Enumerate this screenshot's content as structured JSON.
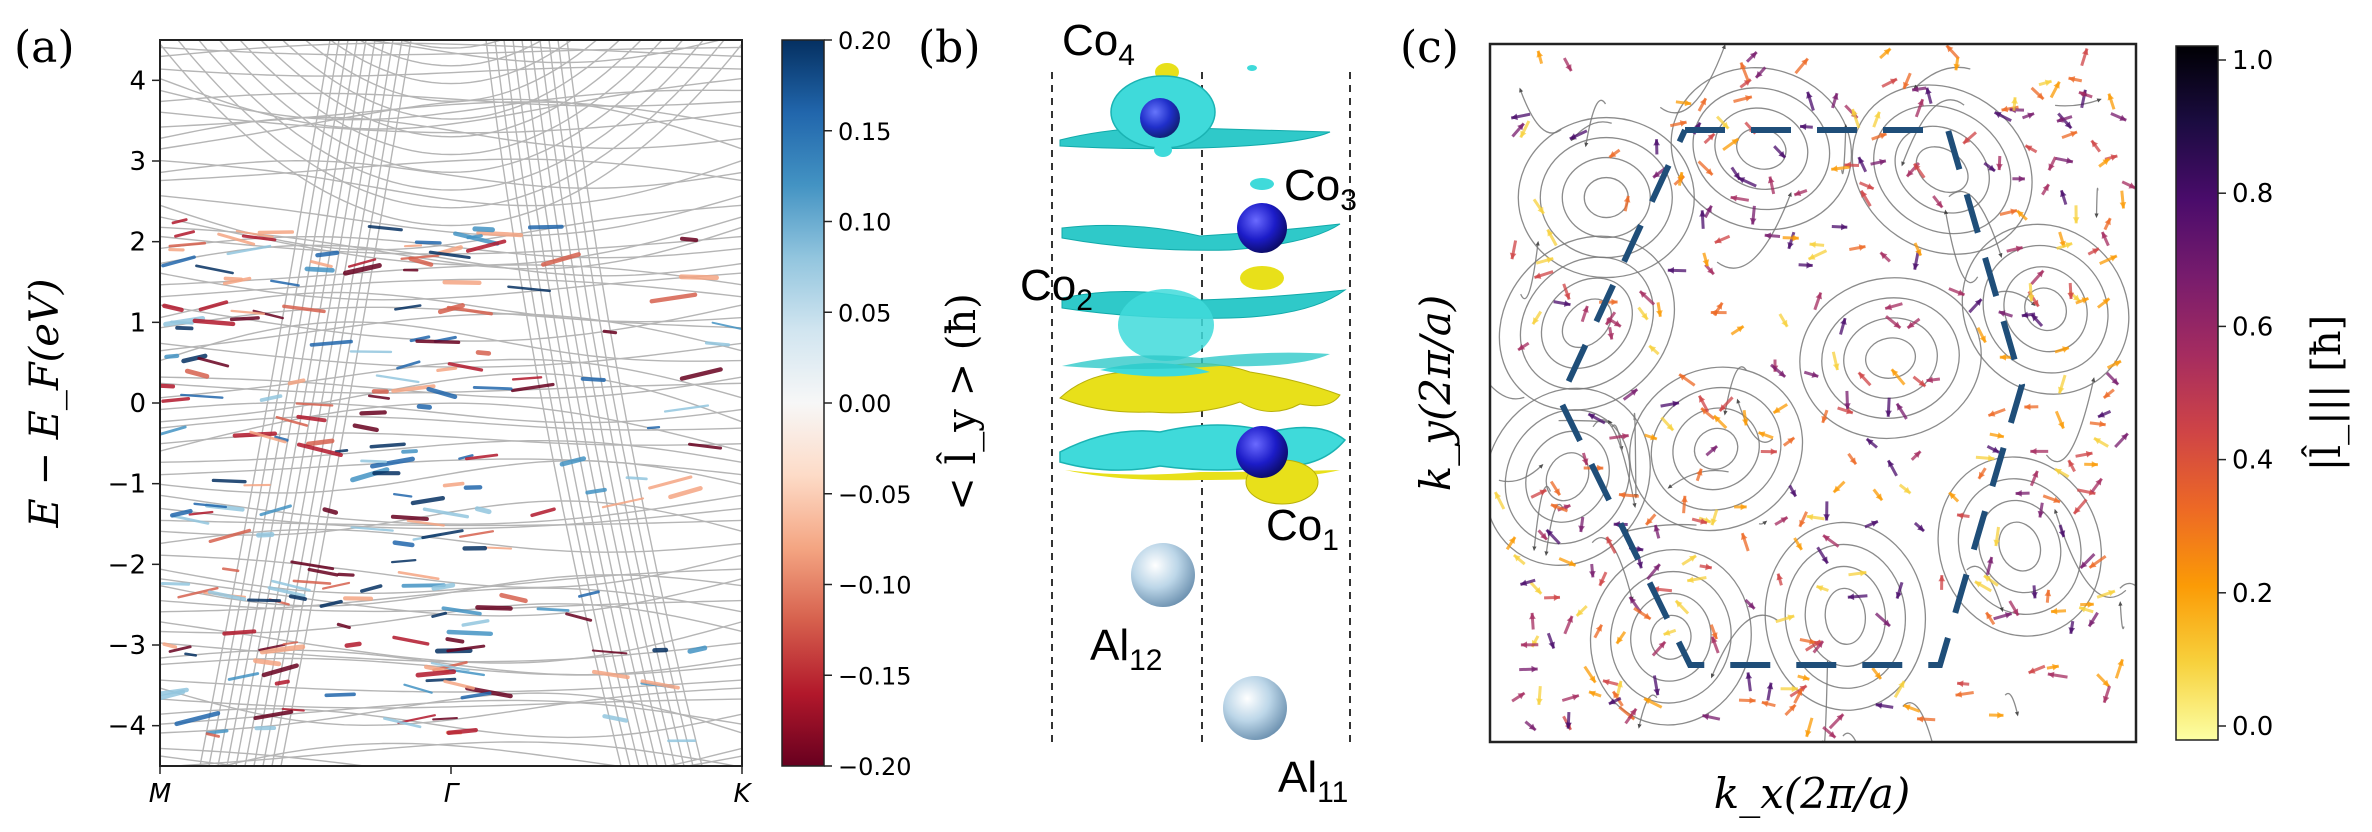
{
  "figure": {
    "panel_labels": [
      "(a)",
      "(b)",
      "(c)"
    ]
  },
  "chart_data": [
    {
      "type": "line",
      "panel": "(a)",
      "description_kind": "band structure colored by orbital moment",
      "ylabel": "E − E_F(eV)",
      "ylim": [
        -4.5,
        4.5
      ],
      "yticks": [
        -4,
        -3,
        -2,
        -1,
        0,
        1,
        2,
        3,
        4
      ],
      "xticks": [
        "M",
        "Γ",
        "K"
      ],
      "colorbar": {
        "label": "< l̂_y > (ħ)",
        "range": [
          -0.2,
          0.2
        ],
        "ticks": [
          "0.20",
          "0.15",
          "0.10",
          "0.05",
          "0.00",
          "−0.05",
          "−0.10",
          "−0.15",
          "−0.20"
        ],
        "colors": [
          "#67001f",
          "#b2182b",
          "#d6604d",
          "#f4a582",
          "#fddbc7",
          "#f7f7f7",
          "#d1e5f0",
          "#92c5de",
          "#4393c3",
          "#2166ac",
          "#053061"
        ]
      },
      "highlight_color_pos": "#2b6fb0",
      "highlight_color_neg": "#c0392b",
      "band_color": "#b5b5b5"
    },
    {
      "type": "structure",
      "panel": "(b)",
      "labels": [
        {
          "text": "Co",
          "sub": "4"
        },
        {
          "text": "Co",
          "sub": "3"
        },
        {
          "text": "Co",
          "sub": "2"
        },
        {
          "text": "Co",
          "sub": "1"
        },
        {
          "text": "Al",
          "sub": "12"
        },
        {
          "text": "Al",
          "sub": "11"
        }
      ],
      "colors": {
        "cyan": "#37d6d6",
        "yellow": "#e8e01a",
        "co_atom": "#1c1cc8",
        "al_atom": "#9cc4de"
      }
    },
    {
      "type": "streamplot",
      "panel": "(c)",
      "xlabel": "k_x(2π/a)",
      "ylabel": "k_y(2π/a)",
      "colorbar": {
        "label": "|l̂_||| [ħ]",
        "range": [
          0.0,
          1.0
        ],
        "ticks": [
          "1.0",
          "0.8",
          "0.6",
          "0.4",
          "0.2",
          "0.0"
        ],
        "colors": [
          "#fcffa4",
          "#f7d13d",
          "#fb9b06",
          "#ed6925",
          "#cf4446",
          "#a52c60",
          "#781c6d",
          "#4a0c6b",
          "#1b0c41",
          "#000004"
        ]
      },
      "bz_color": "#1f4e79"
    }
  ]
}
